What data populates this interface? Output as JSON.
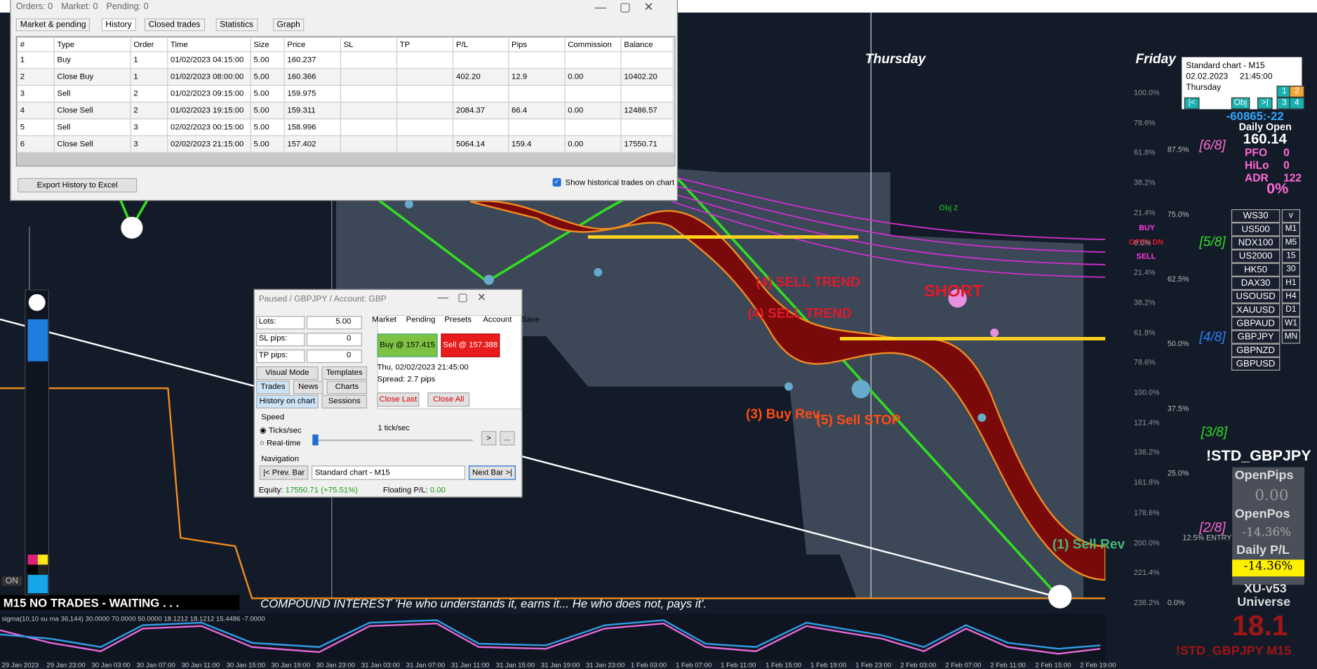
{
  "history_window": {
    "status": [
      "Orders: 0",
      "Market: 0",
      "Pending: 0"
    ],
    "tabs": [
      "Market & pending",
      "History",
      "Closed trades",
      "Statistics",
      "Graph"
    ],
    "table": {
      "headers": [
        "#",
        "Type",
        "Order",
        "Time",
        "Size",
        "Price",
        "SL",
        "TP",
        "P/L",
        "Pips",
        "Commission",
        "Balance"
      ],
      "rows": [
        [
          "1",
          "Buy",
          "1",
          "01/02/2023 04:15:00",
          "5.00",
          "160.237",
          null,
          null,
          null,
          null,
          null,
          null
        ],
        [
          "2",
          "Close Buy",
          "1",
          "01/02/2023 08:00:00",
          "5.00",
          "160.366",
          null,
          null,
          "402.20",
          "12.9",
          "0.00",
          "10402.20"
        ],
        [
          "3",
          "Sell",
          "2",
          "01/02/2023 09:15:00",
          "5.00",
          "159.975",
          null,
          null,
          null,
          null,
          null,
          null
        ],
        [
          "4",
          "Close Sell",
          "2",
          "01/02/2023 19:15:00",
          "5.00",
          "159.311",
          null,
          null,
          "2084.37",
          "66.4",
          "0.00",
          "12486.57"
        ],
        [
          "5",
          "Sell",
          "3",
          "02/02/2023 00:15:00",
          "5.00",
          "158.996",
          null,
          null,
          null,
          null,
          null,
          null
        ],
        [
          "6",
          "Close Sell",
          "3",
          "02/02/2023 21:15:00",
          "5.00",
          "157.402",
          null,
          null,
          "5064.14",
          "159.4",
          "0.00",
          "17550.71"
        ]
      ]
    },
    "export_button": "Export History to Excel",
    "show_trades": "Show historical trades on chart"
  },
  "chart": {
    "day_labels": [
      "Thursday",
      "Friday"
    ],
    "annotations": [
      "(4) SELL TREND",
      "(4) SELL TREND",
      "SHORT",
      "(3) Buy Rev",
      "(5) Sell STOP",
      "(1) Sell Rev",
      "BUY",
      "OPEN DN",
      "SELL",
      "Obj 2"
    ],
    "murrey": [
      "[6/8]",
      "[5/8]",
      "[4/8]",
      "[3/8]",
      "[2/8]"
    ],
    "percent_levels": [
      "87.5%",
      "75.0%",
      "62.5%",
      "50.0%",
      "37.5%",
      "25.0%",
      "12.5% ENTRY",
      "0.0%"
    ],
    "fib_levels": [
      "100.0%",
      "78.6%",
      "61.8%",
      "38.2%",
      "21.4%",
      "0.0%",
      "21.4%",
      "38.2%",
      "61.8%",
      "78.6%",
      "100.0%",
      "121.4%",
      "138.2%",
      "161.8%",
      "178.6%",
      "200.0%",
      "221.4%",
      "238.2%"
    ],
    "status": "M15  NO TRADES - WAITING . . .",
    "quote": "COMPOUND INTEREST 'He who understands it, earns it... He who does not, pays it'.",
    "indicator_label": "sigma(10,10 su ma 36,144) 30.0000 70.0000 50.0000 18.1212 18.1212 15.4486 -7.0000",
    "time_axis": [
      "29 Jan 2023",
      "29 Jan 23:00",
      "30 Jan 03:00",
      "30 Jan 07:00",
      "30 Jan 11:00",
      "30 Jan 15:00",
      "30 Jan 19:00",
      "30 Jan 23:00",
      "31 Jan 03:00",
      "31 Jan 07:00",
      "31 Jan 11:00",
      "31 Jan 15:00",
      "31 Jan 19:00",
      "31 Jan 23:00",
      "1 Feb 03:00",
      "1 Feb 07:00",
      "1 Feb 11:00",
      "1 Feb 15:00",
      "1 Feb 19:00",
      "1 Feb 23:00",
      "2 Feb 03:00",
      "2 Feb 07:00",
      "2 Feb 11:00",
      "2 Feb 15:00",
      "2 Feb 19:00"
    ],
    "on_label": "ON"
  },
  "simulator": {
    "title": "Paused / GBPJPY / Account: GBP",
    "fields": [
      [
        "Lots:",
        "5.00"
      ],
      [
        "SL pips:",
        "0"
      ],
      [
        "TP pips:",
        "0"
      ]
    ],
    "tabs": [
      "Market",
      "Pending",
      "Presets",
      "Account",
      "Save"
    ],
    "buy": "Buy @ 157.415",
    "sell": "Sell @ 157.388",
    "time": "Thu, 02/02/2023  21:45:00",
    "spread": "Spread:  2.7 pips",
    "buttons": [
      "Visual Mode",
      "Templates",
      "Trades",
      "News",
      "Charts",
      "History on chart",
      "Sessions"
    ],
    "close_last": "Close Last",
    "close_all": "Close All",
    "speed": "Speed",
    "ticks": "Ticks/sec",
    "realtime": "Real-time",
    "rate": "1 tick/sec",
    "step": ">",
    "more": "...",
    "navigation": "Navigation",
    "prev": "|< Prev. Bar",
    "chart_select": "Standard chart - M15",
    "next": "Next Bar >|",
    "equity_label": "Equity:",
    "equity": "17550.71",
    "equity_pct": "(+75.51%)",
    "floating_label": "Floating P/L:",
    "floating": "0.00"
  },
  "info_panel": {
    "chart": "Standard chart - M15",
    "date": "02.02.2023",
    "time": "21:45:00",
    "day": "Thursday",
    "buttons": [
      "1",
      "2",
      "3",
      "4",
      "|<",
      "Obj",
      ">|"
    ],
    "counter": "-60865:-22",
    "daily_open_label": "Daily Open",
    "daily_open": "160.14",
    "stats": [
      [
        "PFO",
        "0"
      ],
      [
        "HiLo",
        "0"
      ],
      [
        "ADR",
        "122"
      ]
    ],
    "percent": "0%",
    "symbols": [
      "WS30",
      "US500",
      "NDX100",
      "US2000",
      "HK50",
      "DAX30",
      "USOUSD",
      "XAUUSD",
      "GBPAUD",
      "GBPJPY",
      "GBPNZD",
      "GBPUSD"
    ],
    "timeframes": [
      "v",
      "M1",
      "M5",
      "15",
      "30",
      "H1",
      "H4",
      "D1",
      "W1",
      "MN"
    ],
    "symbol": "!STD_GBPJPY",
    "open_pips_label": "OpenPips",
    "open_pips": "0.00",
    "open_pos_label": "OpenPos",
    "open_pos": "-14.36%",
    "daily_pl_label": "Daily P/L",
    "daily_pl": "-14.36%",
    "version": "XU-v53",
    "universe": "Universe",
    "big_value": "18.1",
    "footer_symbol": "!STD_GBPJPY M15"
  }
}
